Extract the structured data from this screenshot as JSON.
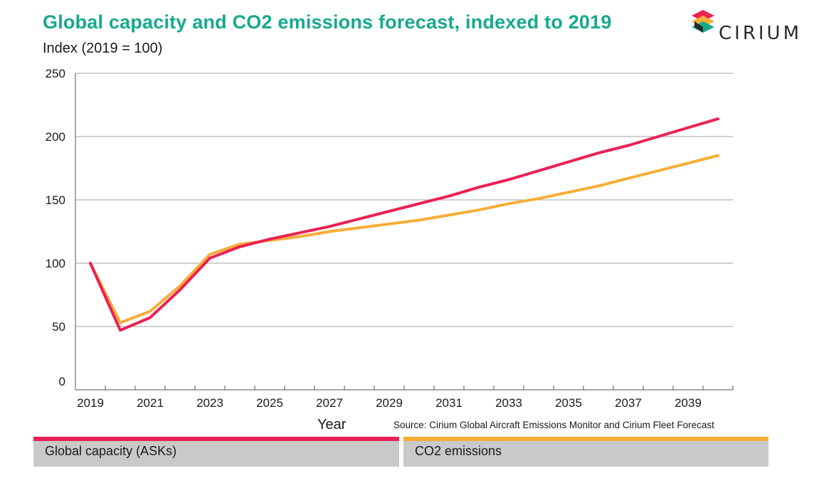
{
  "header": {
    "title": "Global capacity and CO2 emissions forecast, indexed to 2019",
    "subtitle": "Index (2019 = 100)"
  },
  "logo": {
    "text": "CIRIUM",
    "icon": "cirium-logo-icon"
  },
  "source": "Source: Cirium Global Aircraft Emissions Monitor and Cirium Fleet Forecast",
  "colors": {
    "capacity": "#ea2154",
    "co2": "#f8ad35",
    "title": "#16a98e",
    "legend_bg": "#c9c9c9"
  },
  "chart_data": {
    "type": "line",
    "xlabel": "Year",
    "ylabel": "",
    "ylim": [
      0,
      250
    ],
    "xlim": [
      2018.5,
      2040.5
    ],
    "yticks": [
      "0",
      "50",
      "100",
      "150",
      "200",
      "250"
    ],
    "xticks": [
      "2019",
      "2021",
      "2023",
      "2025",
      "2027",
      "2029",
      "2031",
      "2033",
      "2035",
      "2037",
      "2039"
    ],
    "grid": "horizontal",
    "legend_position": "bottom",
    "x": [
      2019,
      2020,
      2021,
      2022,
      2023,
      2024,
      2025,
      2026,
      2027,
      2028,
      2029,
      2030,
      2031,
      2032,
      2033,
      2034,
      2035,
      2036,
      2037,
      2038,
      2039,
      2040
    ],
    "series": [
      {
        "name": "Global capacity (ASKs)",
        "color": "#ea2154",
        "values": [
          100,
          47,
          57,
          79,
          104,
          113,
          119,
          124,
          129,
          135,
          141,
          147,
          153,
          160,
          166,
          173,
          180,
          187,
          193,
          200,
          207,
          214
        ]
      },
      {
        "name": "CO2 emissions",
        "color": "#f8ad35",
        "values": [
          100,
          53,
          62,
          82,
          107,
          115,
          118,
          121,
          125,
          128,
          131,
          134,
          138,
          142,
          147,
          151,
          156,
          161,
          167,
          173,
          179,
          185
        ]
      }
    ]
  }
}
